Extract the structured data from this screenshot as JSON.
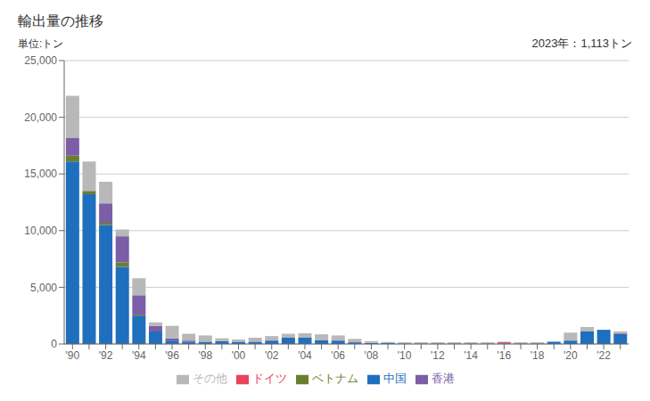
{
  "chart_data": {
    "type": "bar",
    "title": "輸出量の推移",
    "subtitle": "単位:トン",
    "annotations": [
      "2023年：1,113トン"
    ],
    "categories": [
      "'90",
      null,
      "'92",
      null,
      "'94",
      null,
      "'96",
      null,
      "'98",
      null,
      "'00",
      null,
      "'02",
      null,
      "'04",
      null,
      "'06",
      null,
      "'08",
      null,
      "'10",
      null,
      "'12",
      null,
      "'14",
      null,
      "'16",
      null,
      "'18",
      null,
      "'20",
      null,
      "'22",
      null
    ],
    "series": [
      {
        "name": "中国",
        "color": "#1f6fbe",
        "values": [
          16100,
          13200,
          10500,
          6800,
          2500,
          1100,
          300,
          200,
          200,
          250,
          200,
          200,
          300,
          550,
          550,
          350,
          300,
          150,
          100,
          80,
          50,
          50,
          50,
          50,
          50,
          50,
          50,
          50,
          50,
          200,
          300,
          1100,
          1250,
          900
        ]
      },
      {
        "name": "ドイツ",
        "color": "#e8445a",
        "values": [
          0,
          0,
          0,
          0,
          0,
          0,
          0,
          0,
          0,
          0,
          0,
          0,
          0,
          0,
          0,
          0,
          0,
          0,
          0,
          0,
          0,
          0,
          0,
          0,
          0,
          0,
          100,
          0,
          0,
          0,
          0,
          0,
          0,
          50
        ]
      },
      {
        "name": "ベトナム",
        "color": "#6a7f2e",
        "values": [
          500,
          300,
          200,
          400,
          100,
          0,
          0,
          0,
          0,
          0,
          0,
          0,
          0,
          0,
          0,
          0,
          0,
          0,
          0,
          0,
          0,
          0,
          0,
          0,
          0,
          0,
          0,
          0,
          0,
          0,
          0,
          0,
          0,
          0
        ]
      },
      {
        "name": "香港",
        "color": "#7b5ea7",
        "values": [
          1600,
          0,
          1700,
          2300,
          1700,
          500,
          200,
          100,
          0,
          0,
          0,
          0,
          0,
          0,
          0,
          0,
          0,
          0,
          0,
          0,
          0,
          0,
          0,
          0,
          0,
          0,
          0,
          0,
          0,
          0,
          0,
          0,
          0,
          0
        ]
      },
      {
        "name": "その他",
        "color": "#b8b8b8",
        "values": [
          3700,
          2600,
          1900,
          600,
          1500,
          300,
          1100,
          600,
          550,
          250,
          200,
          350,
          400,
          350,
          400,
          500,
          450,
          300,
          150,
          100,
          100,
          100,
          100,
          100,
          100,
          100,
          50,
          100,
          100,
          0,
          700,
          400,
          0,
          163
        ]
      }
    ],
    "ylim": [
      0,
      25000
    ],
    "yticks": [
      0,
      {
        "value": 5000,
        "label": "5,000"
      },
      {
        "value": 10000,
        "label": "10,000"
      },
      {
        "value": 15000,
        "label": "15,000"
      },
      {
        "value": 20000,
        "label": "20,000"
      },
      {
        "value": 25000,
        "label": "25,000"
      }
    ],
    "stacked": true,
    "grid": true,
    "legend": "bottom"
  }
}
